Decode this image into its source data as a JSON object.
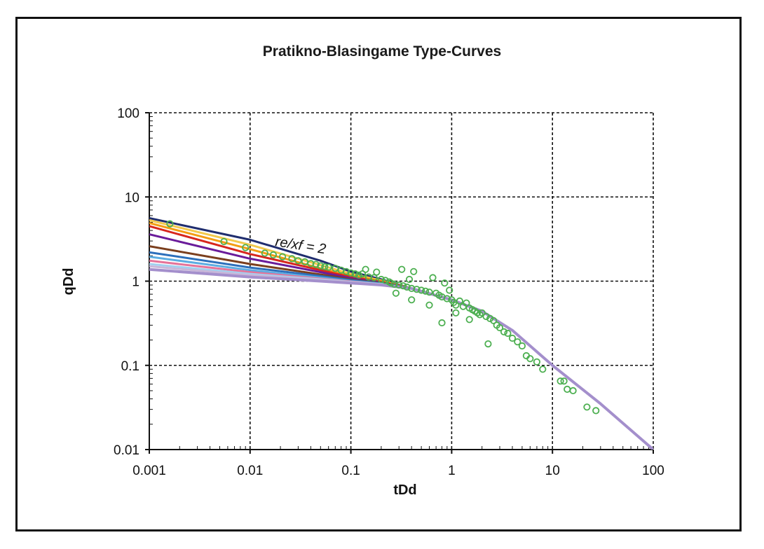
{
  "chart_data": {
    "type": "scatter",
    "title": "Pratikno-Blasingame Type-Curves",
    "xlabel": "tDd",
    "ylabel": "qDd",
    "xscale": "log",
    "yscale": "log",
    "xlim": [
      0.001,
      100
    ],
    "ylim": [
      0.01,
      100
    ],
    "x_ticks": [
      "0.001",
      "0.01",
      "0.1",
      "1",
      "10",
      "100"
    ],
    "y_ticks": [
      "0.01",
      "0.1",
      "1",
      "10",
      "100"
    ],
    "grid": true,
    "legend": "none",
    "annotation": "re/xf = 2",
    "curves": [
      {
        "color": "#1f2d6e",
        "points": [
          [
            0.001,
            5.6
          ],
          [
            0.01,
            3.1
          ],
          [
            0.05,
            1.75
          ],
          [
            0.1,
            1.3
          ],
          [
            0.2,
            1.05
          ],
          [
            0.4,
            0.82
          ],
          [
            1,
            0.6
          ],
          [
            2,
            0.44
          ],
          [
            4,
            0.26
          ],
          [
            10,
            0.1
          ],
          [
            30,
            0.035
          ],
          [
            100,
            0.01
          ]
        ]
      },
      {
        "color": "#f2c94c",
        "points": [
          [
            0.001,
            5.3
          ],
          [
            0.01,
            2.7
          ],
          [
            0.05,
            1.55
          ],
          [
            0.1,
            1.22
          ],
          [
            0.2,
            1.02
          ],
          [
            0.4,
            0.82
          ],
          [
            1,
            0.6
          ],
          [
            2,
            0.44
          ],
          [
            4,
            0.26
          ],
          [
            10,
            0.1
          ],
          [
            30,
            0.035
          ],
          [
            100,
            0.01
          ]
        ]
      },
      {
        "color": "#f39c12",
        "points": [
          [
            0.001,
            4.9
          ],
          [
            0.01,
            2.4
          ],
          [
            0.05,
            1.42
          ],
          [
            0.1,
            1.17
          ],
          [
            0.2,
            1.0
          ],
          [
            0.4,
            0.82
          ],
          [
            1,
            0.6
          ],
          [
            2,
            0.44
          ],
          [
            4,
            0.26
          ],
          [
            10,
            0.1
          ],
          [
            30,
            0.035
          ],
          [
            100,
            0.01
          ]
        ]
      },
      {
        "color": "#d7261e",
        "points": [
          [
            0.001,
            4.5
          ],
          [
            0.01,
            2.1
          ],
          [
            0.05,
            1.35
          ],
          [
            0.1,
            1.12
          ],
          [
            0.2,
            0.98
          ],
          [
            0.4,
            0.82
          ],
          [
            1,
            0.6
          ],
          [
            2,
            0.44
          ],
          [
            4,
            0.26
          ],
          [
            10,
            0.1
          ],
          [
            30,
            0.035
          ],
          [
            100,
            0.01
          ]
        ]
      },
      {
        "color": "#6a1b9a",
        "points": [
          [
            0.001,
            3.6
          ],
          [
            0.01,
            1.85
          ],
          [
            0.05,
            1.28
          ],
          [
            0.1,
            1.08
          ],
          [
            0.2,
            0.96
          ],
          [
            0.4,
            0.82
          ],
          [
            1,
            0.6
          ],
          [
            2,
            0.44
          ],
          [
            4,
            0.26
          ],
          [
            10,
            0.1
          ],
          [
            30,
            0.035
          ],
          [
            100,
            0.01
          ]
        ]
      },
      {
        "color": "#7b3f1e",
        "points": [
          [
            0.001,
            2.6
          ],
          [
            0.01,
            1.6
          ],
          [
            0.05,
            1.2
          ],
          [
            0.1,
            1.05
          ],
          [
            0.2,
            0.95
          ],
          [
            0.4,
            0.82
          ],
          [
            1,
            0.6
          ],
          [
            2,
            0.44
          ],
          [
            4,
            0.26
          ],
          [
            10,
            0.1
          ],
          [
            30,
            0.035
          ],
          [
            100,
            0.01
          ]
        ]
      },
      {
        "color": "#2c6fbb",
        "points": [
          [
            0.001,
            2.2
          ],
          [
            0.01,
            1.45
          ],
          [
            0.05,
            1.15
          ],
          [
            0.1,
            1.03
          ],
          [
            0.2,
            0.94
          ],
          [
            0.4,
            0.82
          ],
          [
            1,
            0.6
          ],
          [
            2,
            0.44
          ],
          [
            4,
            0.26
          ],
          [
            10,
            0.1
          ],
          [
            30,
            0.035
          ],
          [
            100,
            0.01
          ]
        ]
      },
      {
        "color": "#5dade2",
        "points": [
          [
            0.001,
            1.95
          ],
          [
            0.01,
            1.35
          ],
          [
            0.05,
            1.1
          ],
          [
            0.1,
            1.0
          ],
          [
            0.2,
            0.93
          ],
          [
            0.4,
            0.82
          ],
          [
            1,
            0.6
          ],
          [
            2,
            0.44
          ],
          [
            4,
            0.26
          ],
          [
            10,
            0.1
          ],
          [
            30,
            0.035
          ],
          [
            100,
            0.01
          ]
        ]
      },
      {
        "color": "#e57399",
        "points": [
          [
            0.001,
            1.75
          ],
          [
            0.01,
            1.28
          ],
          [
            0.05,
            1.07
          ],
          [
            0.1,
            0.99
          ],
          [
            0.2,
            0.92
          ],
          [
            0.4,
            0.82
          ],
          [
            1,
            0.6
          ],
          [
            2,
            0.44
          ],
          [
            4,
            0.26
          ],
          [
            10,
            0.1
          ],
          [
            30,
            0.035
          ],
          [
            100,
            0.01
          ]
        ]
      },
      {
        "color": "#a3d0ef",
        "points": [
          [
            0.001,
            1.6
          ],
          [
            0.01,
            1.22
          ],
          [
            0.05,
            1.05
          ],
          [
            0.1,
            0.98
          ],
          [
            0.2,
            0.92
          ],
          [
            0.4,
            0.82
          ],
          [
            1,
            0.6
          ],
          [
            2,
            0.44
          ],
          [
            4,
            0.26
          ],
          [
            10,
            0.1
          ],
          [
            30,
            0.035
          ],
          [
            100,
            0.01
          ]
        ]
      },
      {
        "color": "#c8b7d9",
        "points": [
          [
            0.001,
            1.5
          ],
          [
            0.01,
            1.18
          ],
          [
            0.05,
            1.03
          ],
          [
            0.1,
            0.97
          ],
          [
            0.2,
            0.91
          ],
          [
            0.4,
            0.82
          ],
          [
            1,
            0.6
          ],
          [
            2,
            0.44
          ],
          [
            4,
            0.26
          ],
          [
            10,
            0.1
          ],
          [
            30,
            0.035
          ],
          [
            100,
            0.01
          ]
        ]
      },
      {
        "color": "#a48fcc",
        "points": [
          [
            0.001,
            1.38
          ],
          [
            0.01,
            1.12
          ],
          [
            0.05,
            1.0
          ],
          [
            0.1,
            0.95
          ],
          [
            0.2,
            0.9
          ],
          [
            0.4,
            0.82
          ],
          [
            1,
            0.6
          ],
          [
            2,
            0.44
          ],
          [
            4,
            0.26
          ],
          [
            10,
            0.1
          ],
          [
            30,
            0.035
          ],
          [
            100,
            0.01
          ]
        ]
      }
    ],
    "scatter_color": "#4caf50",
    "scatter_points": [
      [
        0.0016,
        4.8
      ],
      [
        0.0055,
        2.95
      ],
      [
        0.009,
        2.5
      ],
      [
        0.014,
        2.15
      ],
      [
        0.017,
        2.05
      ],
      [
        0.021,
        1.95
      ],
      [
        0.026,
        1.85
      ],
      [
        0.03,
        1.75
      ],
      [
        0.035,
        1.7
      ],
      [
        0.04,
        1.62
      ],
      [
        0.045,
        1.58
      ],
      [
        0.05,
        1.52
      ],
      [
        0.055,
        1.48
      ],
      [
        0.06,
        1.46
      ],
      [
        0.07,
        1.42
      ],
      [
        0.08,
        1.35
      ],
      [
        0.09,
        1.3
      ],
      [
        0.1,
        1.25
      ],
      [
        0.11,
        1.22
      ],
      [
        0.12,
        1.18
      ],
      [
        0.13,
        1.22
      ],
      [
        0.14,
        1.38
      ],
      [
        0.15,
        1.12
      ],
      [
        0.17,
        1.1
      ],
      [
        0.18,
        1.28
      ],
      [
        0.2,
        1.05
      ],
      [
        0.22,
        1.02
      ],
      [
        0.24,
        0.98
      ],
      [
        0.25,
        0.95
      ],
      [
        0.27,
        0.92
      ],
      [
        0.28,
        0.72
      ],
      [
        0.3,
        0.9
      ],
      [
        0.32,
        1.38
      ],
      [
        0.33,
        0.88
      ],
      [
        0.36,
        0.85
      ],
      [
        0.38,
        1.05
      ],
      [
        0.4,
        0.82
      ],
      [
        0.42,
        1.3
      ],
      [
        0.45,
        0.8
      ],
      [
        0.5,
        0.78
      ],
      [
        0.55,
        0.76
      ],
      [
        0.6,
        0.74
      ],
      [
        0.65,
        1.1
      ],
      [
        0.7,
        0.72
      ],
      [
        0.75,
        0.68
      ],
      [
        0.8,
        0.65
      ],
      [
        0.85,
        0.95
      ],
      [
        0.9,
        0.62
      ],
      [
        0.95,
        0.78
      ],
      [
        1.0,
        0.6
      ],
      [
        1.05,
        0.56
      ],
      [
        1.1,
        0.52
      ],
      [
        1.2,
        0.58
      ],
      [
        1.3,
        0.5
      ],
      [
        1.4,
        0.55
      ],
      [
        1.5,
        0.48
      ],
      [
        1.6,
        0.46
      ],
      [
        1.7,
        0.44
      ],
      [
        1.8,
        0.42
      ],
      [
        1.9,
        0.4
      ],
      [
        2.0,
        0.42
      ],
      [
        2.2,
        0.38
      ],
      [
        2.4,
        0.36
      ],
      [
        2.6,
        0.34
      ],
      [
        2.8,
        0.3
      ],
      [
        3.0,
        0.28
      ],
      [
        3.3,
        0.25
      ],
      [
        3.6,
        0.24
      ],
      [
        4.0,
        0.21
      ],
      [
        4.5,
        0.19
      ],
      [
        5.0,
        0.17
      ],
      [
        5.5,
        0.13
      ],
      [
        6.0,
        0.12
      ],
      [
        7.0,
        0.11
      ],
      [
        0.4,
        0.6
      ],
      [
        0.6,
        0.52
      ],
      [
        0.8,
        0.32
      ],
      [
        1.1,
        0.42
      ],
      [
        1.5,
        0.35
      ],
      [
        2.3,
        0.18
      ],
      [
        8.0,
        0.09
      ],
      [
        12.0,
        0.065
      ],
      [
        13.0,
        0.065
      ],
      [
        14.0,
        0.052
      ],
      [
        16.0,
        0.05
      ],
      [
        22.0,
        0.032
      ],
      [
        27.0,
        0.029
      ]
    ]
  }
}
